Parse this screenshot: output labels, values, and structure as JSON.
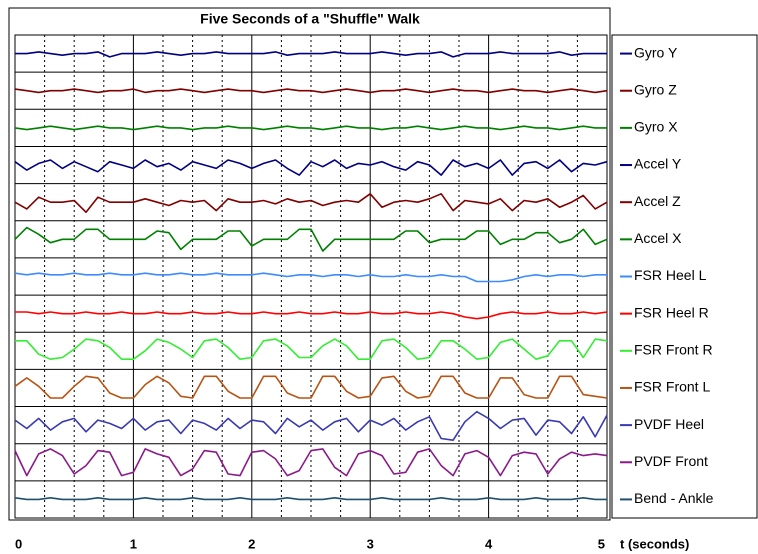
{
  "chart_data": {
    "type": "strip-line",
    "title": "Five Seconds of a \"Shuffle\"  Walk",
    "xlabel": "t (seconds)",
    "xlim": [
      0,
      5
    ],
    "xticks": [
      0,
      1,
      2,
      3,
      4,
      5
    ],
    "minor_xticks": [
      0.25,
      0.5,
      0.75,
      1.25,
      1.5,
      1.75,
      2.25,
      2.5,
      2.75,
      3.25,
      3.5,
      3.75,
      4.25,
      4.5,
      4.75
    ],
    "grid": true,
    "ylim": [
      -1,
      1
    ],
    "legend": "right",
    "x": [
      0,
      0.1,
      0.2,
      0.3,
      0.4,
      0.5,
      0.6,
      0.7,
      0.8,
      0.9,
      1,
      1.1,
      1.2,
      1.3,
      1.4,
      1.5,
      1.6,
      1.7,
      1.8,
      1.9,
      2,
      2.1,
      2.2,
      2.3,
      2.4,
      2.5,
      2.6,
      2.7,
      2.8,
      2.9,
      3,
      3.1,
      3.2,
      3.3,
      3.4,
      3.5,
      3.6,
      3.7,
      3.8,
      3.9,
      4,
      4.1,
      4.2,
      4.3,
      4.4,
      4.5,
      4.6,
      4.7,
      4.8,
      4.9,
      5
    ],
    "series": [
      {
        "name": "Gyro Y",
        "color": "#000080",
        "values": [
          0,
          0,
          0.1,
          0,
          -0.1,
          0,
          0,
          0.1,
          -0.2,
          0,
          0,
          0,
          0.1,
          0,
          -0.1,
          0,
          0,
          0.1,
          0,
          0,
          0,
          0,
          0.1,
          -0.1,
          0,
          0,
          0,
          0.1,
          0,
          0,
          0,
          0.1,
          0,
          -0.1,
          0,
          0,
          0.1,
          -0.2,
          0,
          0,
          0,
          0.1,
          0,
          0,
          0,
          0,
          0.1,
          -0.1,
          0,
          0,
          0
        ]
      },
      {
        "name": "Gyro Z",
        "color": "#800000",
        "values": [
          0.1,
          0,
          -0.1,
          0,
          0,
          0.1,
          0,
          -0.1,
          0,
          0,
          0.1,
          -0.1,
          0,
          0,
          0.1,
          0,
          -0.1,
          0,
          0.1,
          0,
          0,
          -0.1,
          0,
          0.1,
          0,
          0,
          -0.1,
          0,
          0.1,
          0,
          -0.1,
          0,
          0,
          0.1,
          0,
          -0.1,
          0,
          0.1,
          0,
          0,
          -0.1,
          0,
          0.1,
          0,
          0,
          -0.1,
          0,
          0.1,
          0,
          -0.1,
          0
        ]
      },
      {
        "name": "Gyro X",
        "color": "#008000",
        "values": [
          0,
          -0.1,
          0,
          0.1,
          0,
          -0.1,
          0,
          0.1,
          0,
          0,
          -0.1,
          0,
          0.1,
          0,
          0,
          -0.1,
          0,
          0,
          0.1,
          0,
          0,
          -0.1,
          0,
          0.1,
          0,
          0,
          -0.1,
          0,
          0.1,
          0,
          0,
          -0.1,
          0,
          0,
          0.1,
          0,
          -0.1,
          0,
          0.1,
          0,
          0,
          -0.1,
          0,
          0.1,
          0,
          0,
          -0.1,
          0,
          0.1,
          0,
          0
        ]
      },
      {
        "name": "Accel Y",
        "color": "#000080",
        "values": [
          0.2,
          -0.3,
          0.1,
          0.3,
          -0.2,
          0.2,
          -0.1,
          -0.4,
          0.2,
          0,
          -0.2,
          0.3,
          -0.1,
          0.1,
          -0.3,
          0.2,
          0,
          -0.2,
          0.3,
          0.1,
          -0.2,
          0.1,
          0.3,
          -0.2,
          -0.6,
          0.2,
          -0.1,
          0.3,
          -0.2,
          0.1,
          0,
          0.2,
          -0.1,
          -0.3,
          0.2,
          0,
          -0.6,
          0.3,
          -0.1,
          0.1,
          -0.2,
          0.3,
          -0.6,
          0.1,
          0.2,
          -0.2,
          0.3,
          -0.4,
          0.1,
          0,
          0.2
        ]
      },
      {
        "name": "Accel Z",
        "color": "#800000",
        "values": [
          0,
          -0.4,
          0.3,
          0,
          0,
          0.1,
          -0.6,
          0.3,
          0,
          0,
          0,
          0.2,
          0,
          -0.2,
          0.1,
          0,
          0.1,
          -0.5,
          0.2,
          0,
          0,
          0.1,
          -0.1,
          0.2,
          0,
          0.1,
          -0.2,
          0,
          0.1,
          0,
          0.5,
          -0.3,
          0,
          0.1,
          0,
          0.2,
          0.5,
          -0.5,
          0.1,
          0,
          -0.1,
          0.2,
          -0.5,
          0.1,
          0,
          0.2,
          -0.3,
          0,
          0.4,
          -0.4,
          0
        ]
      },
      {
        "name": "Accel X",
        "color": "#008000",
        "values": [
          0,
          0.7,
          0.3,
          -0.2,
          0,
          0,
          0.6,
          0.6,
          0,
          0,
          0,
          0,
          0.5,
          0.4,
          -0.6,
          0,
          0,
          0,
          0.5,
          0.5,
          -0.4,
          0,
          0,
          0,
          0.6,
          0.6,
          -0.7,
          0,
          0,
          0,
          0,
          0,
          0,
          0.5,
          0.5,
          -0.2,
          0,
          0,
          0,
          0.5,
          0.5,
          -0.3,
          0,
          0,
          0.4,
          0.4,
          -0.2,
          0,
          0.6,
          -0.3,
          0
        ]
      },
      {
        "name": "FSR Heel L",
        "color": "#3d8bff",
        "values": [
          0.2,
          0.1,
          0.2,
          0.1,
          0.1,
          0.2,
          0.1,
          0.1,
          0.2,
          0.1,
          0.1,
          0.2,
          0.1,
          0.1,
          0.2,
          0.1,
          0.1,
          0.2,
          0.1,
          0.1,
          0.1,
          0.2,
          0.1,
          0,
          0.1,
          0.1,
          0,
          0.1,
          0.1,
          0,
          0.1,
          0,
          0,
          0.1,
          0,
          0,
          0.1,
          0,
          0,
          -0.3,
          -0.3,
          -0.3,
          -0.2,
          0,
          0.1,
          0,
          0.1,
          0.1,
          0,
          0.1,
          0.1
        ]
      },
      {
        "name": "FSR Heel R",
        "color": "#ff0000",
        "values": [
          0.1,
          0.1,
          0,
          0.1,
          0,
          0,
          0.1,
          0,
          0,
          0.1,
          0,
          0,
          0.1,
          0,
          0,
          0.1,
          0,
          0,
          0.1,
          0,
          0,
          0.1,
          0,
          0,
          0.1,
          0,
          0,
          0.1,
          0,
          0,
          0.1,
          0,
          0,
          0.1,
          0,
          0,
          0.1,
          0,
          -0.2,
          -0.3,
          -0.2,
          0,
          0.1,
          0,
          0,
          0.1,
          0,
          0,
          0.1,
          0,
          0.1
        ]
      },
      {
        "name": "FSR Front R",
        "color": "#33ee33",
        "values": [
          0.6,
          0.6,
          -0.2,
          -0.5,
          -0.4,
          0.1,
          0.7,
          0.6,
          0.2,
          -0.5,
          -0.5,
          0,
          0.7,
          0.5,
          0.1,
          -0.4,
          0.6,
          0.7,
          0.2,
          -0.5,
          -0.4,
          0.6,
          0.7,
          0.3,
          -0.4,
          -0.4,
          0.3,
          0.7,
          0.3,
          -0.5,
          -0.5,
          0.6,
          0.7,
          0.2,
          -0.5,
          -0.4,
          0.6,
          0.6,
          0.1,
          -0.5,
          -0.4,
          0.5,
          0.7,
          0.1,
          -0.5,
          -0.3,
          0.6,
          0.6,
          -0.4,
          0.7,
          0.6
        ]
      },
      {
        "name": "FSR Front L",
        "color": "#b85413",
        "values": [
          0.1,
          0.6,
          0.1,
          -0.6,
          -0.6,
          0.1,
          0.7,
          0.6,
          -0.3,
          -0.6,
          -0.6,
          0.2,
          0.7,
          0.3,
          -0.5,
          -0.6,
          0.7,
          0.7,
          -0.2,
          -0.6,
          -0.6,
          0.7,
          0.7,
          -0.3,
          -0.6,
          -0.6,
          0.7,
          0.7,
          -0.2,
          -0.6,
          -0.5,
          0.6,
          0.7,
          -0.2,
          -0.6,
          -0.5,
          0.7,
          0.7,
          -0.3,
          -0.6,
          -0.6,
          0.6,
          0.6,
          -0.4,
          -0.6,
          -0.6,
          0.7,
          0.7,
          -0.4,
          -0.5,
          -0.6
        ]
      },
      {
        "name": "PVDF Heel",
        "color": "#3a3ab0",
        "values": [
          0.3,
          -0.2,
          0.4,
          -0.3,
          0.2,
          0.4,
          -0.4,
          0.3,
          0.1,
          -0.2,
          0.4,
          -0.3,
          0.2,
          0.3,
          -0.5,
          0.3,
          0.1,
          -0.3,
          0.4,
          -0.2,
          0.3,
          0.2,
          -0.5,
          0.4,
          -0.1,
          0.3,
          -0.3,
          0.2,
          0.4,
          -0.4,
          0.3,
          0,
          0.4,
          -0.3,
          0.2,
          0.5,
          -0.8,
          -0.9,
          0.2,
          0.8,
          0.4,
          -0.2,
          0.3,
          0.4,
          -0.6,
          0.3,
          0.2,
          -0.5,
          0.5,
          -0.7,
          0.6
        ]
      },
      {
        "name": "PVDF Front",
        "color": "#8a1a8a",
        "values": [
          0.7,
          -0.8,
          0.5,
          0.8,
          0.4,
          -0.7,
          -0.2,
          0.7,
          0.6,
          -0.8,
          -0.6,
          0.8,
          0.5,
          0.3,
          -0.8,
          -0.4,
          0.7,
          0.6,
          -0.7,
          -0.8,
          0.6,
          0.7,
          0.2,
          -0.8,
          -0.5,
          0.7,
          0.8,
          -0.3,
          -0.8,
          0.5,
          0.7,
          0.4,
          -0.7,
          -0.6,
          0.6,
          0.8,
          -0.2,
          -0.8,
          0.5,
          0.7,
          0.3,
          -0.8,
          0.4,
          0.6,
          0.5,
          -0.7,
          0.2,
          0.6,
          0.4,
          0.5,
          0.4
        ]
      },
      {
        "name": "Bend - Ankle",
        "color": "#1f4f6f",
        "values": [
          0.1,
          0,
          0,
          0.1,
          0,
          0,
          0,
          0.1,
          0,
          0,
          0,
          0.1,
          0,
          0,
          0,
          0.1,
          0,
          0,
          0,
          0.1,
          0,
          0,
          0,
          0.1,
          0,
          0,
          0,
          0.1,
          0,
          0,
          0,
          0.1,
          0,
          0,
          0,
          0,
          0.1,
          0,
          0,
          0,
          0.1,
          0,
          0,
          0,
          0.1,
          0,
          0,
          0,
          0.1,
          0,
          0
        ]
      }
    ]
  }
}
